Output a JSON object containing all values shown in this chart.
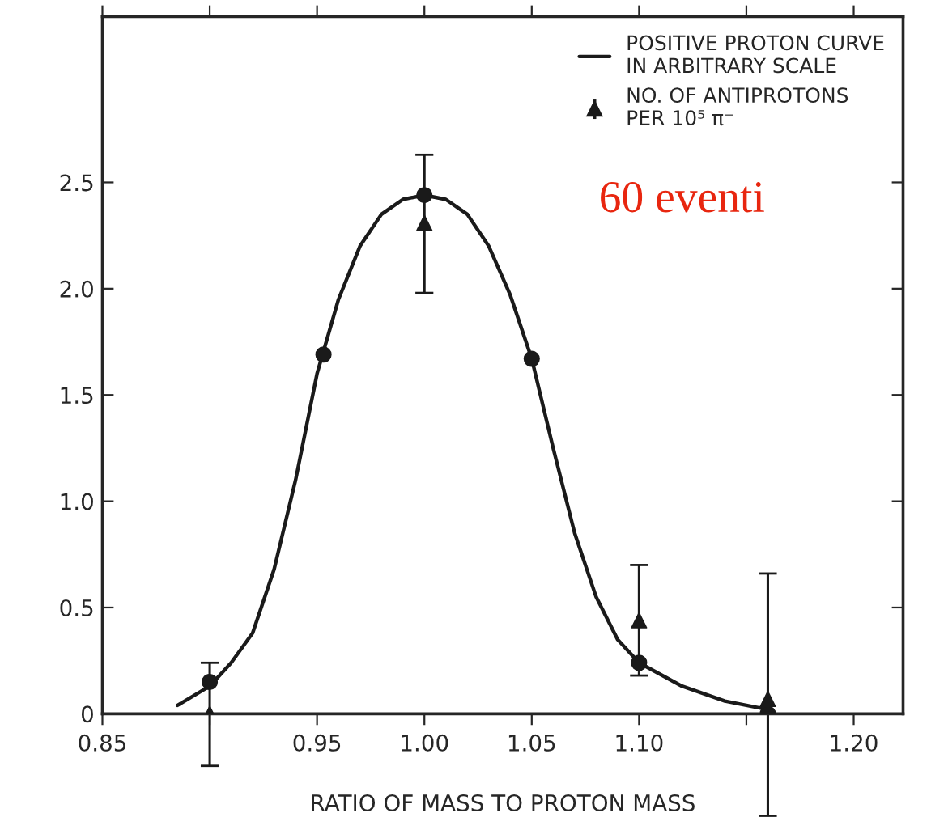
{
  "chart_data": {
    "type": "line",
    "xlabel": "RATIO OF MASS TO PROTON MASS",
    "xlim": [
      0.85,
      1.223
    ],
    "ylim": [
      0,
      3.28
    ],
    "xticks": [
      {
        "value": 0.85,
        "label": "0.85"
      },
      {
        "value": 0.9,
        "label": null
      },
      {
        "value": 0.95,
        "label": "0.95"
      },
      {
        "value": 1.0,
        "label": "1.00"
      },
      {
        "value": 1.05,
        "label": "1.05"
      },
      {
        "value": 1.1,
        "label": "1.10"
      },
      {
        "value": 1.15,
        "label": null
      },
      {
        "value": 1.2,
        "label": "1.20"
      }
    ],
    "yticks": [
      0,
      0.5,
      {
        "value": 1.0,
        "label": "1.0"
      },
      1.5,
      {
        "value": 2.0,
        "label": "2.0"
      },
      2.5
    ],
    "grid": false,
    "legend": "top right",
    "annotations": [
      "60 eventi"
    ],
    "series": [
      {
        "name": "POSITIVE PROTON CURVE\nIN ARBITRARY SCALE",
        "color": "#1a1a1a",
        "marker": "none",
        "line_style": "solid",
        "x": [
          0.885,
          0.9,
          0.91,
          0.92,
          0.93,
          0.94,
          0.95,
          0.96,
          0.97,
          0.98,
          0.99,
          1.0,
          1.01,
          1.02,
          1.03,
          1.04,
          1.05,
          1.06,
          1.07,
          1.08,
          1.09,
          1.1,
          1.12,
          1.14,
          1.16
        ],
        "values": [
          0.04,
          0.13,
          0.24,
          0.38,
          0.68,
          1.1,
          1.6,
          1.95,
          2.2,
          2.35,
          2.42,
          2.44,
          2.42,
          2.35,
          2.2,
          1.97,
          1.67,
          1.25,
          0.85,
          0.55,
          0.35,
          0.24,
          0.13,
          0.06,
          0.02
        ]
      },
      {
        "type": "scatter",
        "color": "#1a1a1a",
        "marker": "circle",
        "x": [
          0.9,
          0.953,
          1.0,
          1.05,
          1.1,
          1.16
        ],
        "values": [
          0.15,
          1.69,
          2.44,
          1.67,
          0.24,
          0.0
        ]
      },
      {
        "name": "NO. OF ANTIPROTONS\nPER 10⁵ π⁻",
        "type": "scatter",
        "color": "#1a1a1a",
        "marker": "triangle",
        "x": [
          0.9,
          1.0,
          1.1,
          1.16
        ],
        "values": [
          0.0,
          2.31,
          0.44,
          0.07
        ],
        "errors": [
          [
            -0.245,
            0.24
          ],
          [
            1.98,
            2.63
          ],
          [
            0.18,
            0.7
          ],
          [
            -0.48,
            0.66
          ]
        ]
      }
    ]
  }
}
